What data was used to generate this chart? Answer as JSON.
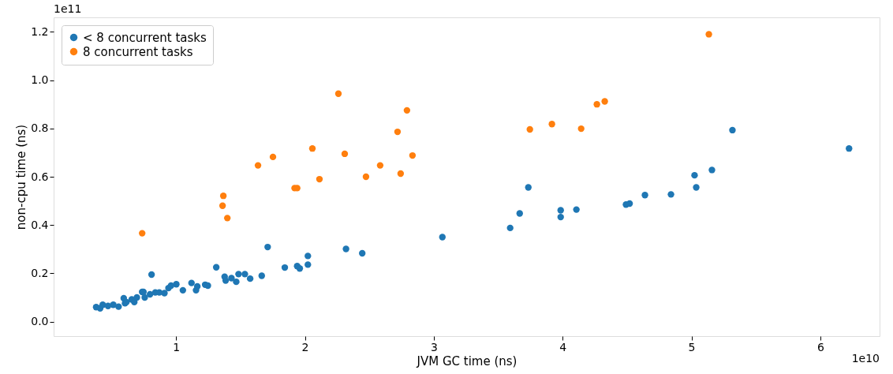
{
  "chart_data": {
    "type": "scatter",
    "xlabel": "JVM GC time (ns)",
    "ylabel": "non-cpu time (ns)",
    "annotations": [
      "1e11",
      "1e10"
    ],
    "xlim": [
      0.05,
      6.46
    ],
    "ylim": [
      -0.06,
      1.26
    ],
    "xticks": [
      1,
      2,
      3,
      4,
      5,
      6
    ],
    "yticks": [
      {
        "value": 0,
        "label": "0.0"
      },
      {
        "value": 0.2,
        "label": "0.2"
      },
      {
        "value": 0.4,
        "label": "0.4"
      },
      {
        "value": 0.6,
        "label": "0.6"
      },
      {
        "value": 0.8,
        "label": "0.8"
      },
      {
        "value": 1.0,
        "label": "1.0"
      },
      {
        "value": 1.2,
        "label": "1.2"
      }
    ],
    "grid": false,
    "legend": "top left",
    "marker": "circle",
    "series": [
      {
        "name": "< 8 concurrent tasks",
        "color": "#1f77b4",
        "x": [
          0.38,
          0.411,
          0.431,
          0.472,
          0.513,
          0.554,
          0.594,
          0.604,
          0.615,
          0.656,
          0.676,
          0.696,
          0.737,
          0.747,
          0.757,
          0.798,
          0.81,
          0.839,
          0.87,
          0.91,
          0.941,
          0.961,
          1.002,
          1.053,
          1.12,
          1.155,
          1.165,
          1.226,
          1.247,
          1.312,
          1.377,
          1.385,
          1.43,
          1.467,
          1.485,
          1.534,
          1.575,
          1.665,
          1.711,
          1.844,
          1.94,
          1.96,
          2.023,
          2.023,
          2.319,
          2.445,
          3.067,
          3.593,
          3.667,
          3.734,
          3.985,
          3.985,
          4.107,
          4.492,
          4.52,
          4.639,
          4.841,
          5.024,
          5.037,
          5.159,
          5.318,
          6.223
        ],
        "values": [
          0.06,
          0.055,
          0.07,
          0.065,
          0.07,
          0.062,
          0.097,
          0.076,
          0.081,
          0.092,
          0.081,
          0.1,
          0.123,
          0.123,
          0.1,
          0.113,
          0.195,
          0.121,
          0.121,
          0.118,
          0.139,
          0.149,
          0.155,
          0.13,
          0.16,
          0.13,
          0.146,
          0.153,
          0.149,
          0.225,
          0.186,
          0.17,
          0.18,
          0.165,
          0.197,
          0.197,
          0.178,
          0.19,
          0.309,
          0.224,
          0.23,
          0.22,
          0.272,
          0.236,
          0.301,
          0.283,
          0.35,
          0.388,
          0.448,
          0.556,
          0.461,
          0.433,
          0.464,
          0.485,
          0.489,
          0.524,
          0.527,
          0.606,
          0.556,
          0.628,
          0.793,
          0.717
        ]
      },
      {
        "name": "8 concurrent tasks",
        "color": "#ff7f0e",
        "x": [
          0.737,
          1.367,
          1.361,
          1.398,
          1.636,
          1.752,
          1.92,
          1.94,
          2.058,
          2.113,
          2.26,
          2.309,
          2.474,
          2.584,
          2.719,
          2.743,
          2.792,
          2.835,
          3.746,
          3.917,
          4.144,
          4.266,
          4.327,
          5.135
        ],
        "values": [
          0.366,
          0.521,
          0.48,
          0.429,
          0.647,
          0.682,
          0.553,
          0.553,
          0.717,
          0.59,
          0.944,
          0.695,
          0.6,
          0.647,
          0.786,
          0.613,
          0.875,
          0.688,
          0.796,
          0.818,
          0.799,
          0.9,
          0.912,
          1.19
        ]
      }
    ]
  }
}
